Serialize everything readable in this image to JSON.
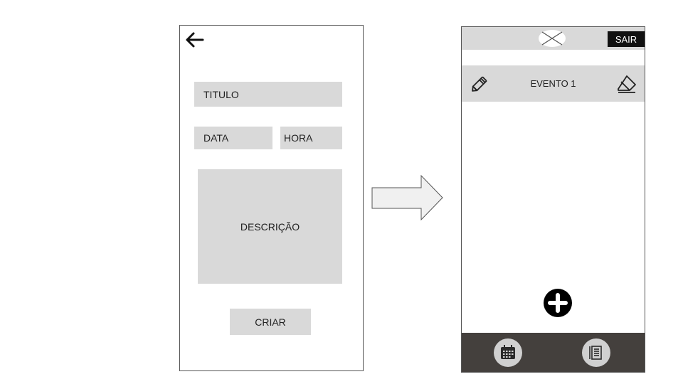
{
  "form": {
    "title_field": "TITULO",
    "date_field": "DATA",
    "time_field": "HORA",
    "description_field": "DESCRIÇÃO",
    "create_button": "CRIAR"
  },
  "list": {
    "logout_button": "SAIR",
    "events": [
      {
        "label": "EVENTO 1"
      }
    ]
  },
  "icons": {
    "back": "arrow-left-icon",
    "flow_arrow": "arrow-right-icon",
    "logo": "crossed-ellipse-logo",
    "edit": "pencil-icon",
    "delete": "eraser-icon",
    "add": "plus-circle-icon",
    "calendar": "calendar-icon",
    "list": "list-icon"
  },
  "colors": {
    "field_bg": "#d9d9d9",
    "bottom_bar": "#44403d",
    "logout_bg": "#111111"
  }
}
